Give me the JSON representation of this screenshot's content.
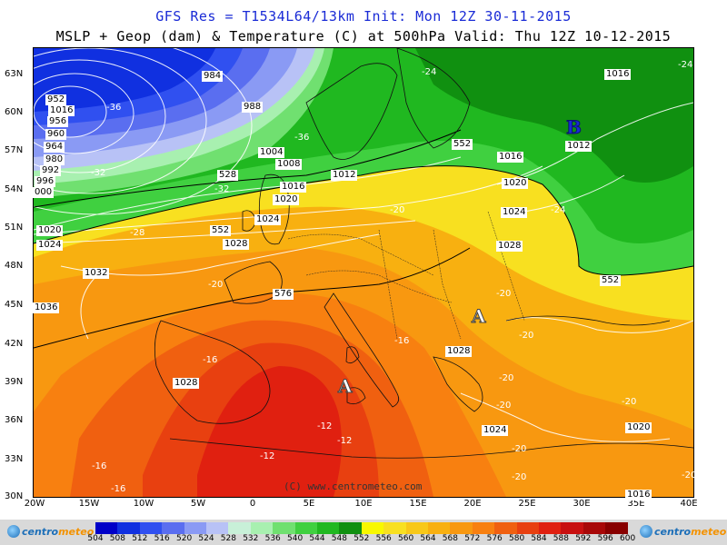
{
  "header": {
    "title_line1": "GFS Res = T1534L64/13km   Init: Mon 12Z 30-11-2015",
    "title_line2": "MSLP + Geop (dam) & Temperature (C) at 500hPa  Valid: Thu 12Z 10-12-2015"
  },
  "axes": {
    "lat_labels": [
      "63N",
      "60N",
      "57N",
      "54N",
      "51N",
      "48N",
      "45N",
      "42N",
      "39N",
      "36N",
      "33N",
      "30N"
    ],
    "lon_labels": [
      "20W",
      "15W",
      "10W",
      "5W",
      "0",
      "5E",
      "10E",
      "15E",
      "20E",
      "25E",
      "30E",
      "35E",
      "40E"
    ]
  },
  "credit": "(C) www.centrometeo.com",
  "pressure_labels": [
    {
      "text": "984"
    },
    {
      "text": "988"
    },
    {
      "text": "952"
    },
    {
      "text": "956"
    },
    {
      "text": "960"
    },
    {
      "text": "964"
    },
    {
      "text": "1004"
    },
    {
      "text": "1008"
    },
    {
      "text": "1012"
    },
    {
      "text": "1016"
    },
    {
      "text": "1020"
    },
    {
      "text": "1024"
    },
    {
      "text": "1028"
    },
    {
      "text": "1032"
    },
    {
      "text": "1016"
    },
    {
      "text": "1012"
    },
    {
      "text": "1016"
    },
    {
      "text": "1020"
    },
    {
      "text": "1024"
    },
    {
      "text": "1028"
    },
    {
      "text": "1028"
    },
    {
      "text": "1028"
    },
    {
      "text": "1024"
    },
    {
      "text": "1020"
    },
    {
      "text": "1016"
    },
    {
      "text": "1020"
    },
    {
      "text": "1024"
    },
    {
      "text": "1016"
    },
    {
      "text": "980"
    },
    {
      "text": "992"
    },
    {
      "text": "996"
    },
    {
      "text": "000"
    },
    {
      "text": "1036"
    }
  ],
  "geopotential_labels": [
    {
      "text": "528"
    },
    {
      "text": "552"
    },
    {
      "text": "576"
    },
    {
      "text": "552"
    },
    {
      "text": "552"
    }
  ],
  "temperature_labels": [
    {
      "text": "-24"
    },
    {
      "text": "-36"
    },
    {
      "text": "-36"
    },
    {
      "text": "-32"
    },
    {
      "text": "-32"
    },
    {
      "text": "-28"
    },
    {
      "text": "-24"
    },
    {
      "text": "-20"
    },
    {
      "text": "-20"
    },
    {
      "text": "-20"
    },
    {
      "text": "-20"
    },
    {
      "text": "-16"
    },
    {
      "text": "-16"
    },
    {
      "text": "-12"
    },
    {
      "text": "-12"
    },
    {
      "text": "-12"
    },
    {
      "text": "-16"
    },
    {
      "text": "-16"
    },
    {
      "text": "-20"
    },
    {
      "text": "-20"
    },
    {
      "text": "-20"
    },
    {
      "text": "-20"
    },
    {
      "text": "-20"
    },
    {
      "text": "-24"
    },
    {
      "text": "-20"
    }
  ],
  "pressure_systems": [
    {
      "type": "high",
      "symbol": "A"
    },
    {
      "type": "high",
      "symbol": "A"
    },
    {
      "type": "low",
      "symbol": "B"
    }
  ],
  "colorbar": {
    "ticks": [
      "504",
      "508",
      "512",
      "516",
      "520",
      "524",
      "528",
      "532",
      "536",
      "540",
      "544",
      "548",
      "552",
      "556",
      "560",
      "564",
      "568",
      "572",
      "576",
      "580",
      "584",
      "588",
      "592",
      "596",
      "600"
    ],
    "colors": [
      "#0000c8",
      "#1030e0",
      "#3050f0",
      "#5a6ef0",
      "#8a9af4",
      "#b8c2f6",
      "#c8f0d8",
      "#a8f0b0",
      "#70e070",
      "#40d040",
      "#20b820",
      "#109010",
      "#f8f800",
      "#f8e020",
      "#f8c818",
      "#f8b010",
      "#f89810",
      "#f88010",
      "#f06010",
      "#e84010",
      "#e02010",
      "#c81010",
      "#a80808",
      "#880000"
    ],
    "logo_left": "centro",
    "logo_left_accent": "meteo",
    "logo_right": "centro",
    "logo_right_accent": "meteo"
  }
}
